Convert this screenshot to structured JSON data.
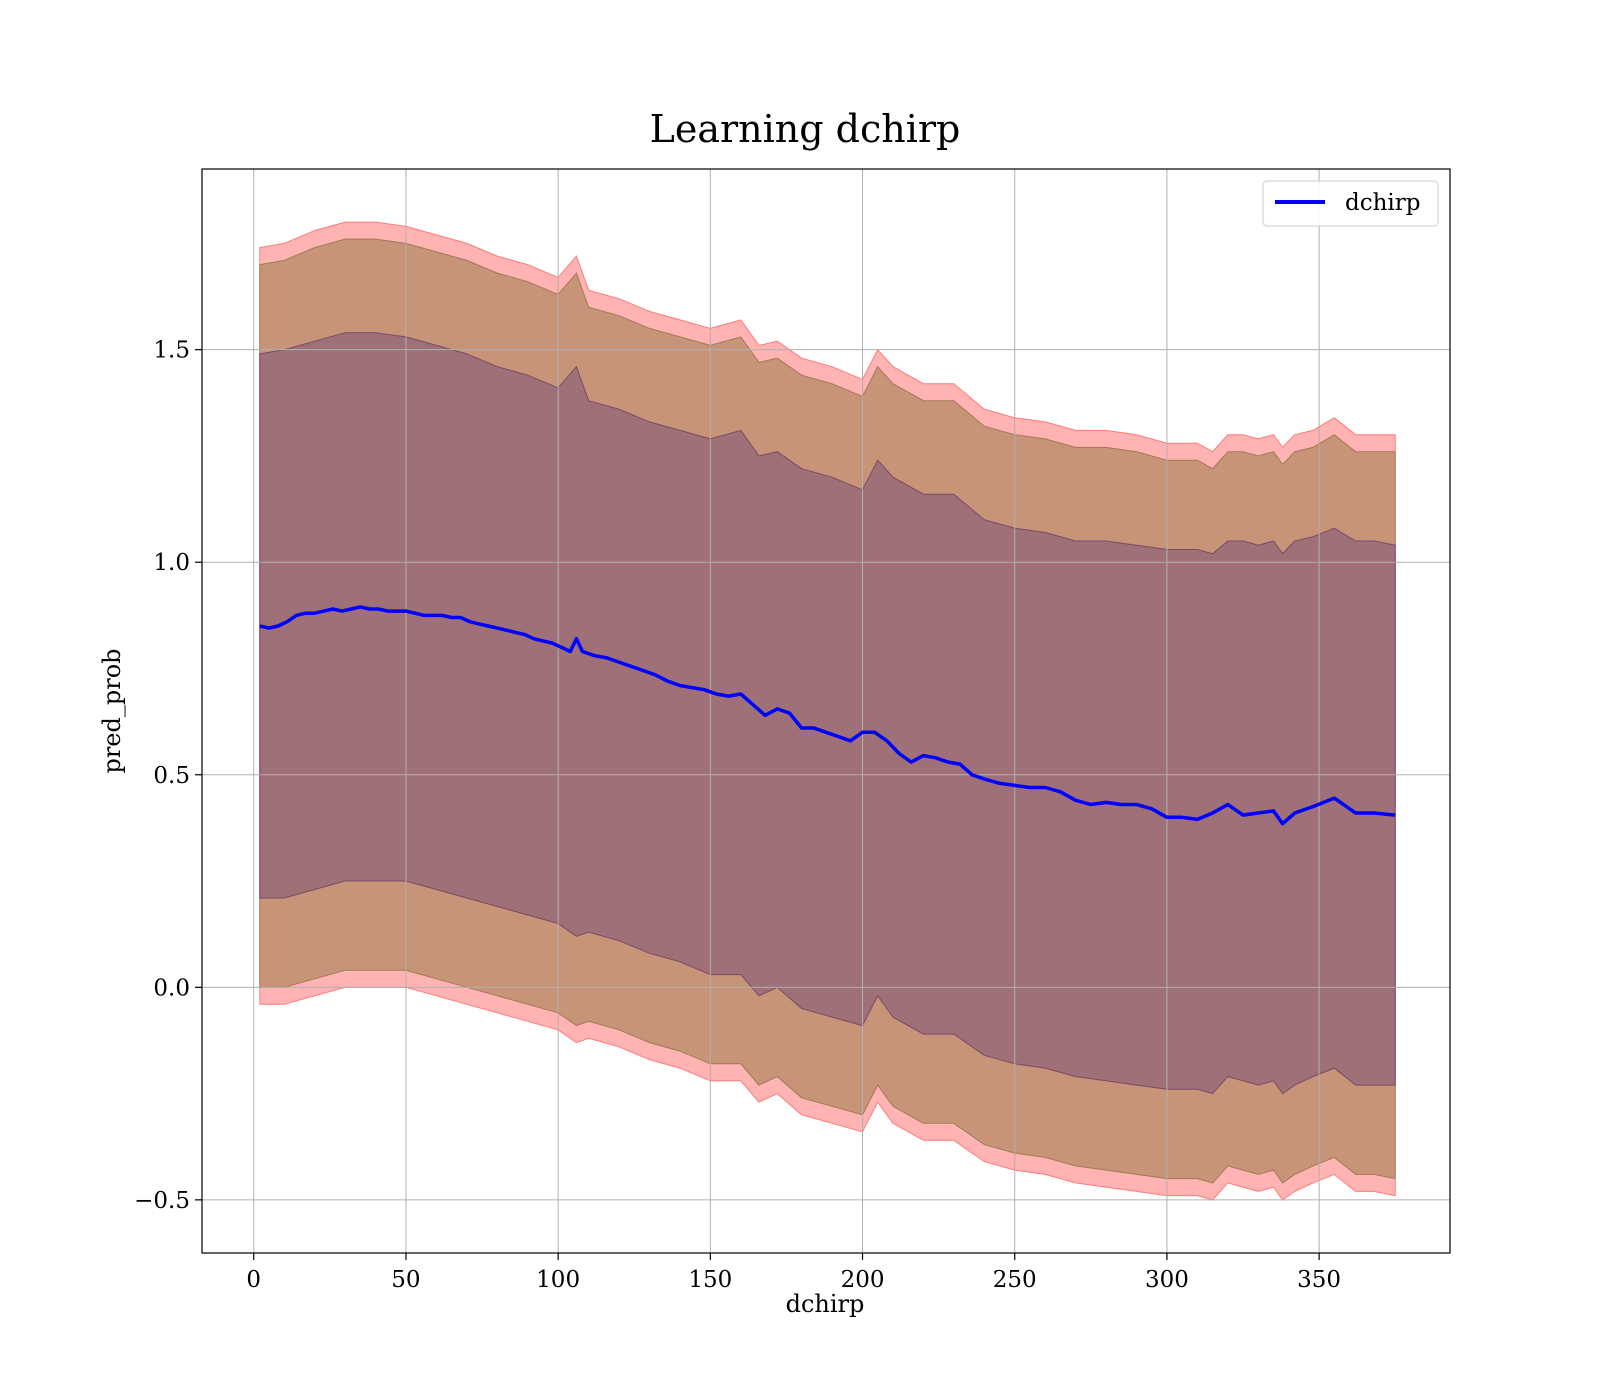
{
  "chart_data": {
    "type": "area",
    "title": "Learning dchirp",
    "xlabel": "dchirp",
    "ylabel": "pred_prob",
    "xlim": [
      -17,
      393
    ],
    "ylim": [
      -0.625,
      1.925
    ],
    "x_ticks": [
      0,
      50,
      100,
      150,
      200,
      250,
      300,
      350
    ],
    "x_tick_labels": [
      "0",
      "50",
      "100",
      "150",
      "200",
      "250",
      "300",
      "350"
    ],
    "y_ticks": [
      -0.5,
      0.0,
      0.5,
      1.0,
      1.5
    ],
    "y_tick_labels": [
      "−0.5",
      "0.0",
      "0.5",
      "1.0",
      "1.5"
    ],
    "grid": true,
    "legend": {
      "position": "top-right",
      "entries": [
        "dchirp"
      ]
    },
    "colors": {
      "line": "#0000ff",
      "band_outer": "#ffb3b3",
      "band_middle": "#c89478",
      "band_inner": "#a07078"
    },
    "series": [
      {
        "name": "dchirp",
        "style": "line",
        "x": [
          2,
          5,
          8,
          11,
          14,
          17,
          20,
          23,
          26,
          29,
          32,
          35,
          38,
          41,
          44,
          47,
          50,
          53,
          56,
          59,
          62,
          65,
          68,
          71,
          74,
          77,
          80,
          83,
          86,
          89,
          92,
          95,
          98,
          101,
          104,
          106,
          108,
          112,
          116,
          120,
          124,
          128,
          132,
          136,
          140,
          144,
          148,
          152,
          156,
          160,
          164,
          168,
          172,
          176,
          180,
          184,
          188,
          192,
          196,
          200,
          204,
          208,
          212,
          216,
          220,
          224,
          228,
          232,
          236,
          240,
          245,
          250,
          255,
          260,
          265,
          270,
          275,
          280,
          285,
          290,
          295,
          300,
          305,
          310,
          315,
          320,
          325,
          330,
          335,
          338,
          342,
          348,
          355,
          362,
          368,
          375
        ],
        "y": [
          0.85,
          0.845,
          0.85,
          0.86,
          0.875,
          0.88,
          0.88,
          0.885,
          0.89,
          0.885,
          0.89,
          0.895,
          0.89,
          0.89,
          0.885,
          0.885,
          0.885,
          0.88,
          0.875,
          0.875,
          0.875,
          0.87,
          0.87,
          0.86,
          0.855,
          0.85,
          0.845,
          0.84,
          0.835,
          0.83,
          0.82,
          0.815,
          0.81,
          0.8,
          0.79,
          0.82,
          0.79,
          0.78,
          0.775,
          0.765,
          0.755,
          0.745,
          0.735,
          0.72,
          0.71,
          0.705,
          0.7,
          0.69,
          0.685,
          0.69,
          0.665,
          0.64,
          0.655,
          0.645,
          0.61,
          0.61,
          0.6,
          0.59,
          0.58,
          0.6,
          0.6,
          0.58,
          0.55,
          0.53,
          0.545,
          0.54,
          0.53,
          0.525,
          0.5,
          0.49,
          0.48,
          0.475,
          0.47,
          0.47,
          0.46,
          0.44,
          0.43,
          0.435,
          0.43,
          0.43,
          0.42,
          0.4,
          0.4,
          0.395,
          0.41,
          0.43,
          0.405,
          0.41,
          0.415,
          0.385,
          0.41,
          0.425,
          0.445,
          0.41,
          0.41,
          0.405
        ]
      }
    ],
    "bands": [
      {
        "layer": "outer",
        "x": [
          2,
          10,
          20,
          30,
          40,
          50,
          60,
          70,
          80,
          90,
          100,
          106,
          110,
          120,
          130,
          140,
          150,
          160,
          166,
          172,
          180,
          190,
          200,
          205,
          210,
          220,
          230,
          240,
          250,
          260,
          270,
          280,
          290,
          300,
          305,
          310,
          315,
          320,
          325,
          330,
          335,
          338,
          342,
          348,
          355,
          362,
          368,
          375
        ],
        "upper": [
          1.74,
          1.75,
          1.78,
          1.8,
          1.8,
          1.79,
          1.77,
          1.75,
          1.72,
          1.7,
          1.67,
          1.72,
          1.64,
          1.62,
          1.59,
          1.57,
          1.55,
          1.57,
          1.51,
          1.52,
          1.48,
          1.46,
          1.43,
          1.5,
          1.46,
          1.42,
          1.42,
          1.36,
          1.34,
          1.33,
          1.31,
          1.31,
          1.3,
          1.28,
          1.28,
          1.28,
          1.26,
          1.3,
          1.3,
          1.29,
          1.3,
          1.27,
          1.3,
          1.31,
          1.34,
          1.3,
          1.3,
          1.3
        ],
        "lower": [
          -0.04,
          -0.04,
          -0.02,
          0.0,
          0.0,
          0.0,
          -0.02,
          -0.04,
          -0.06,
          -0.08,
          -0.1,
          -0.13,
          -0.12,
          -0.14,
          -0.17,
          -0.19,
          -0.22,
          -0.22,
          -0.27,
          -0.25,
          -0.3,
          -0.32,
          -0.34,
          -0.27,
          -0.32,
          -0.36,
          -0.36,
          -0.41,
          -0.43,
          -0.44,
          -0.46,
          -0.47,
          -0.48,
          -0.49,
          -0.49,
          -0.49,
          -0.5,
          -0.46,
          -0.47,
          -0.48,
          -0.47,
          -0.5,
          -0.48,
          -0.46,
          -0.44,
          -0.48,
          -0.48,
          -0.49
        ]
      },
      {
        "layer": "middle",
        "x": [
          2,
          10,
          20,
          30,
          40,
          50,
          60,
          70,
          80,
          90,
          100,
          106,
          110,
          120,
          130,
          140,
          150,
          160,
          166,
          172,
          180,
          190,
          200,
          205,
          210,
          220,
          230,
          240,
          250,
          260,
          270,
          280,
          290,
          300,
          305,
          310,
          315,
          320,
          325,
          330,
          335,
          338,
          342,
          348,
          355,
          362,
          368,
          375
        ],
        "upper": [
          1.7,
          1.71,
          1.74,
          1.76,
          1.76,
          1.75,
          1.73,
          1.71,
          1.68,
          1.66,
          1.63,
          1.68,
          1.6,
          1.58,
          1.55,
          1.53,
          1.51,
          1.53,
          1.47,
          1.48,
          1.44,
          1.42,
          1.39,
          1.46,
          1.42,
          1.38,
          1.38,
          1.32,
          1.3,
          1.29,
          1.27,
          1.27,
          1.26,
          1.24,
          1.24,
          1.24,
          1.22,
          1.26,
          1.26,
          1.25,
          1.26,
          1.23,
          1.26,
          1.27,
          1.3,
          1.26,
          1.26,
          1.26
        ],
        "lower": [
          0.0,
          0.0,
          0.02,
          0.04,
          0.04,
          0.04,
          0.02,
          0.0,
          -0.02,
          -0.04,
          -0.06,
          -0.09,
          -0.08,
          -0.1,
          -0.13,
          -0.15,
          -0.18,
          -0.18,
          -0.23,
          -0.21,
          -0.26,
          -0.28,
          -0.3,
          -0.23,
          -0.28,
          -0.32,
          -0.32,
          -0.37,
          -0.39,
          -0.4,
          -0.42,
          -0.43,
          -0.44,
          -0.45,
          -0.45,
          -0.45,
          -0.46,
          -0.42,
          -0.43,
          -0.44,
          -0.43,
          -0.46,
          -0.44,
          -0.42,
          -0.4,
          -0.44,
          -0.44,
          -0.45
        ]
      },
      {
        "layer": "inner",
        "x": [
          2,
          10,
          20,
          30,
          40,
          50,
          60,
          70,
          80,
          90,
          100,
          106,
          110,
          120,
          130,
          140,
          150,
          160,
          166,
          172,
          180,
          190,
          200,
          205,
          210,
          220,
          230,
          240,
          250,
          260,
          270,
          280,
          290,
          300,
          305,
          310,
          315,
          320,
          325,
          330,
          335,
          338,
          342,
          348,
          355,
          362,
          368,
          375
        ],
        "upper": [
          1.49,
          1.5,
          1.52,
          1.54,
          1.54,
          1.53,
          1.51,
          1.49,
          1.46,
          1.44,
          1.41,
          1.46,
          1.38,
          1.36,
          1.33,
          1.31,
          1.29,
          1.31,
          1.25,
          1.26,
          1.22,
          1.2,
          1.17,
          1.24,
          1.2,
          1.16,
          1.16,
          1.1,
          1.08,
          1.07,
          1.05,
          1.05,
          1.04,
          1.03,
          1.03,
          1.03,
          1.02,
          1.05,
          1.05,
          1.04,
          1.05,
          1.02,
          1.05,
          1.06,
          1.08,
          1.05,
          1.05,
          1.04
        ],
        "lower": [
          0.21,
          0.21,
          0.23,
          0.25,
          0.25,
          0.25,
          0.23,
          0.21,
          0.19,
          0.17,
          0.15,
          0.12,
          0.13,
          0.11,
          0.08,
          0.06,
          0.03,
          0.03,
          -0.02,
          0.0,
          -0.05,
          -0.07,
          -0.09,
          -0.02,
          -0.07,
          -0.11,
          -0.11,
          -0.16,
          -0.18,
          -0.19,
          -0.21,
          -0.22,
          -0.23,
          -0.24,
          -0.24,
          -0.24,
          -0.25,
          -0.21,
          -0.22,
          -0.23,
          -0.22,
          -0.25,
          -0.23,
          -0.21,
          -0.19,
          -0.23,
          -0.23,
          -0.23
        ]
      }
    ]
  }
}
